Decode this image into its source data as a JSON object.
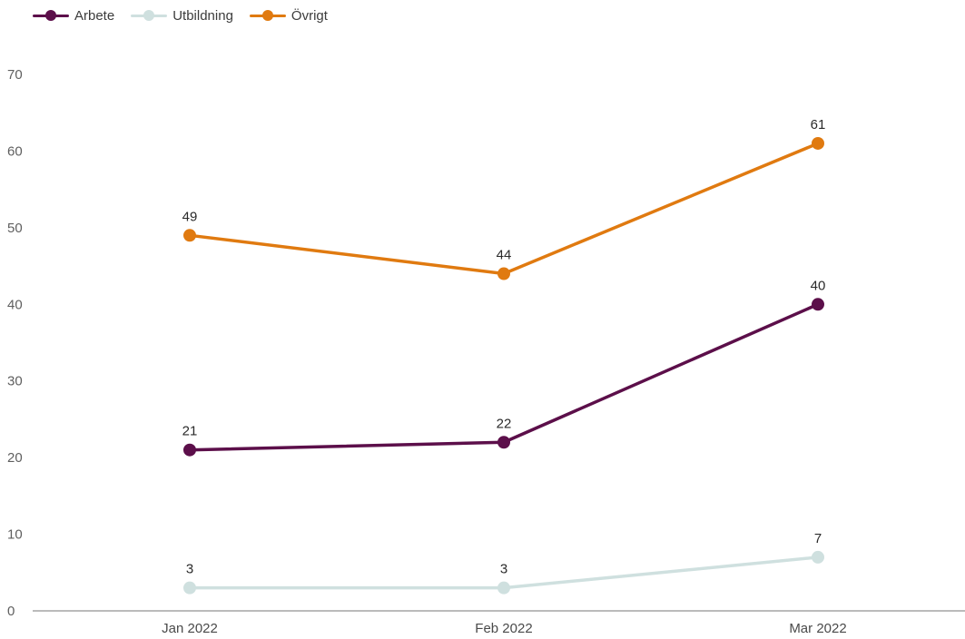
{
  "chart_data": {
    "type": "line",
    "categories": [
      "Jan 2022",
      "Feb 2022",
      "Mar 2022"
    ],
    "series": [
      {
        "name": "Arbete",
        "values": [
          21,
          22,
          40
        ],
        "color": "#5c0f4a"
      },
      {
        "name": "Utbildning",
        "values": [
          3,
          3,
          7
        ],
        "color": "#cfe0df"
      },
      {
        "name": "Övrigt",
        "values": [
          49,
          44,
          61
        ],
        "color": "#e07a10"
      }
    ],
    "ylim": [
      0,
      70
    ],
    "yticks": [
      0,
      10,
      20,
      30,
      40,
      50,
      60,
      70
    ],
    "data_labels": true,
    "legend_position": "top-left",
    "grid": false
  }
}
